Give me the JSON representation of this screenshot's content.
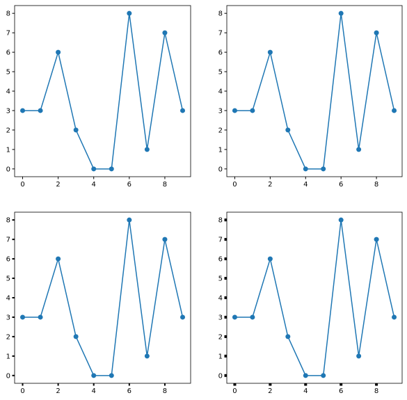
{
  "chart_data": [
    {
      "type": "line",
      "x": [
        0,
        1,
        2,
        3,
        4,
        5,
        6,
        7,
        8,
        9
      ],
      "series": [
        {
          "color": "#1f77b4",
          "values": [
            3,
            3,
            6,
            2,
            0,
            0,
            8,
            1,
            7,
            3
          ]
        }
      ],
      "xlim": [
        -0.45,
        9.45
      ],
      "ylim": [
        -0.4,
        8.4
      ],
      "xticks": [
        0,
        2,
        4,
        6,
        8
      ],
      "yticks": [
        0,
        1,
        2,
        3,
        4,
        5,
        6,
        7,
        8
      ],
      "tick_width": 1
    },
    {
      "type": "line",
      "x": [
        0,
        1,
        2,
        3,
        4,
        5,
        6,
        7,
        8,
        9
      ],
      "series": [
        {
          "color": "#1f77b4",
          "values": [
            3,
            3,
            6,
            2,
            0,
            0,
            8,
            1,
            7,
            3
          ]
        }
      ],
      "xlim": [
        -0.45,
        9.45
      ],
      "ylim": [
        -0.4,
        8.4
      ],
      "xticks": [
        0,
        2,
        4,
        6,
        8
      ],
      "yticks": [
        0,
        1,
        2,
        3,
        4,
        5,
        6,
        7,
        8
      ],
      "tick_width": 1
    },
    {
      "type": "line",
      "x": [
        0,
        1,
        2,
        3,
        4,
        5,
        6,
        7,
        8,
        9
      ],
      "series": [
        {
          "color": "#1f77b4",
          "values": [
            3,
            3,
            6,
            2,
            0,
            0,
            8,
            1,
            7,
            3
          ]
        }
      ],
      "xlim": [
        -0.45,
        9.45
      ],
      "ylim": [
        -0.4,
        8.4
      ],
      "xticks": [
        0,
        2,
        4,
        6,
        8
      ],
      "yticks": [
        0,
        1,
        2,
        3,
        4,
        5,
        6,
        7,
        8
      ],
      "tick_width": 2
    },
    {
      "type": "line",
      "x": [
        0,
        1,
        2,
        3,
        4,
        5,
        6,
        7,
        8,
        9
      ],
      "series": [
        {
          "color": "#1f77b4",
          "values": [
            3,
            3,
            6,
            2,
            0,
            0,
            8,
            1,
            7,
            3
          ]
        }
      ],
      "xlim": [
        -0.45,
        9.45
      ],
      "ylim": [
        -0.4,
        8.4
      ],
      "xticks": [
        0,
        2,
        4,
        6,
        8
      ],
      "yticks": [
        0,
        1,
        2,
        3,
        4,
        5,
        6,
        7,
        8
      ],
      "tick_width": 4
    }
  ]
}
